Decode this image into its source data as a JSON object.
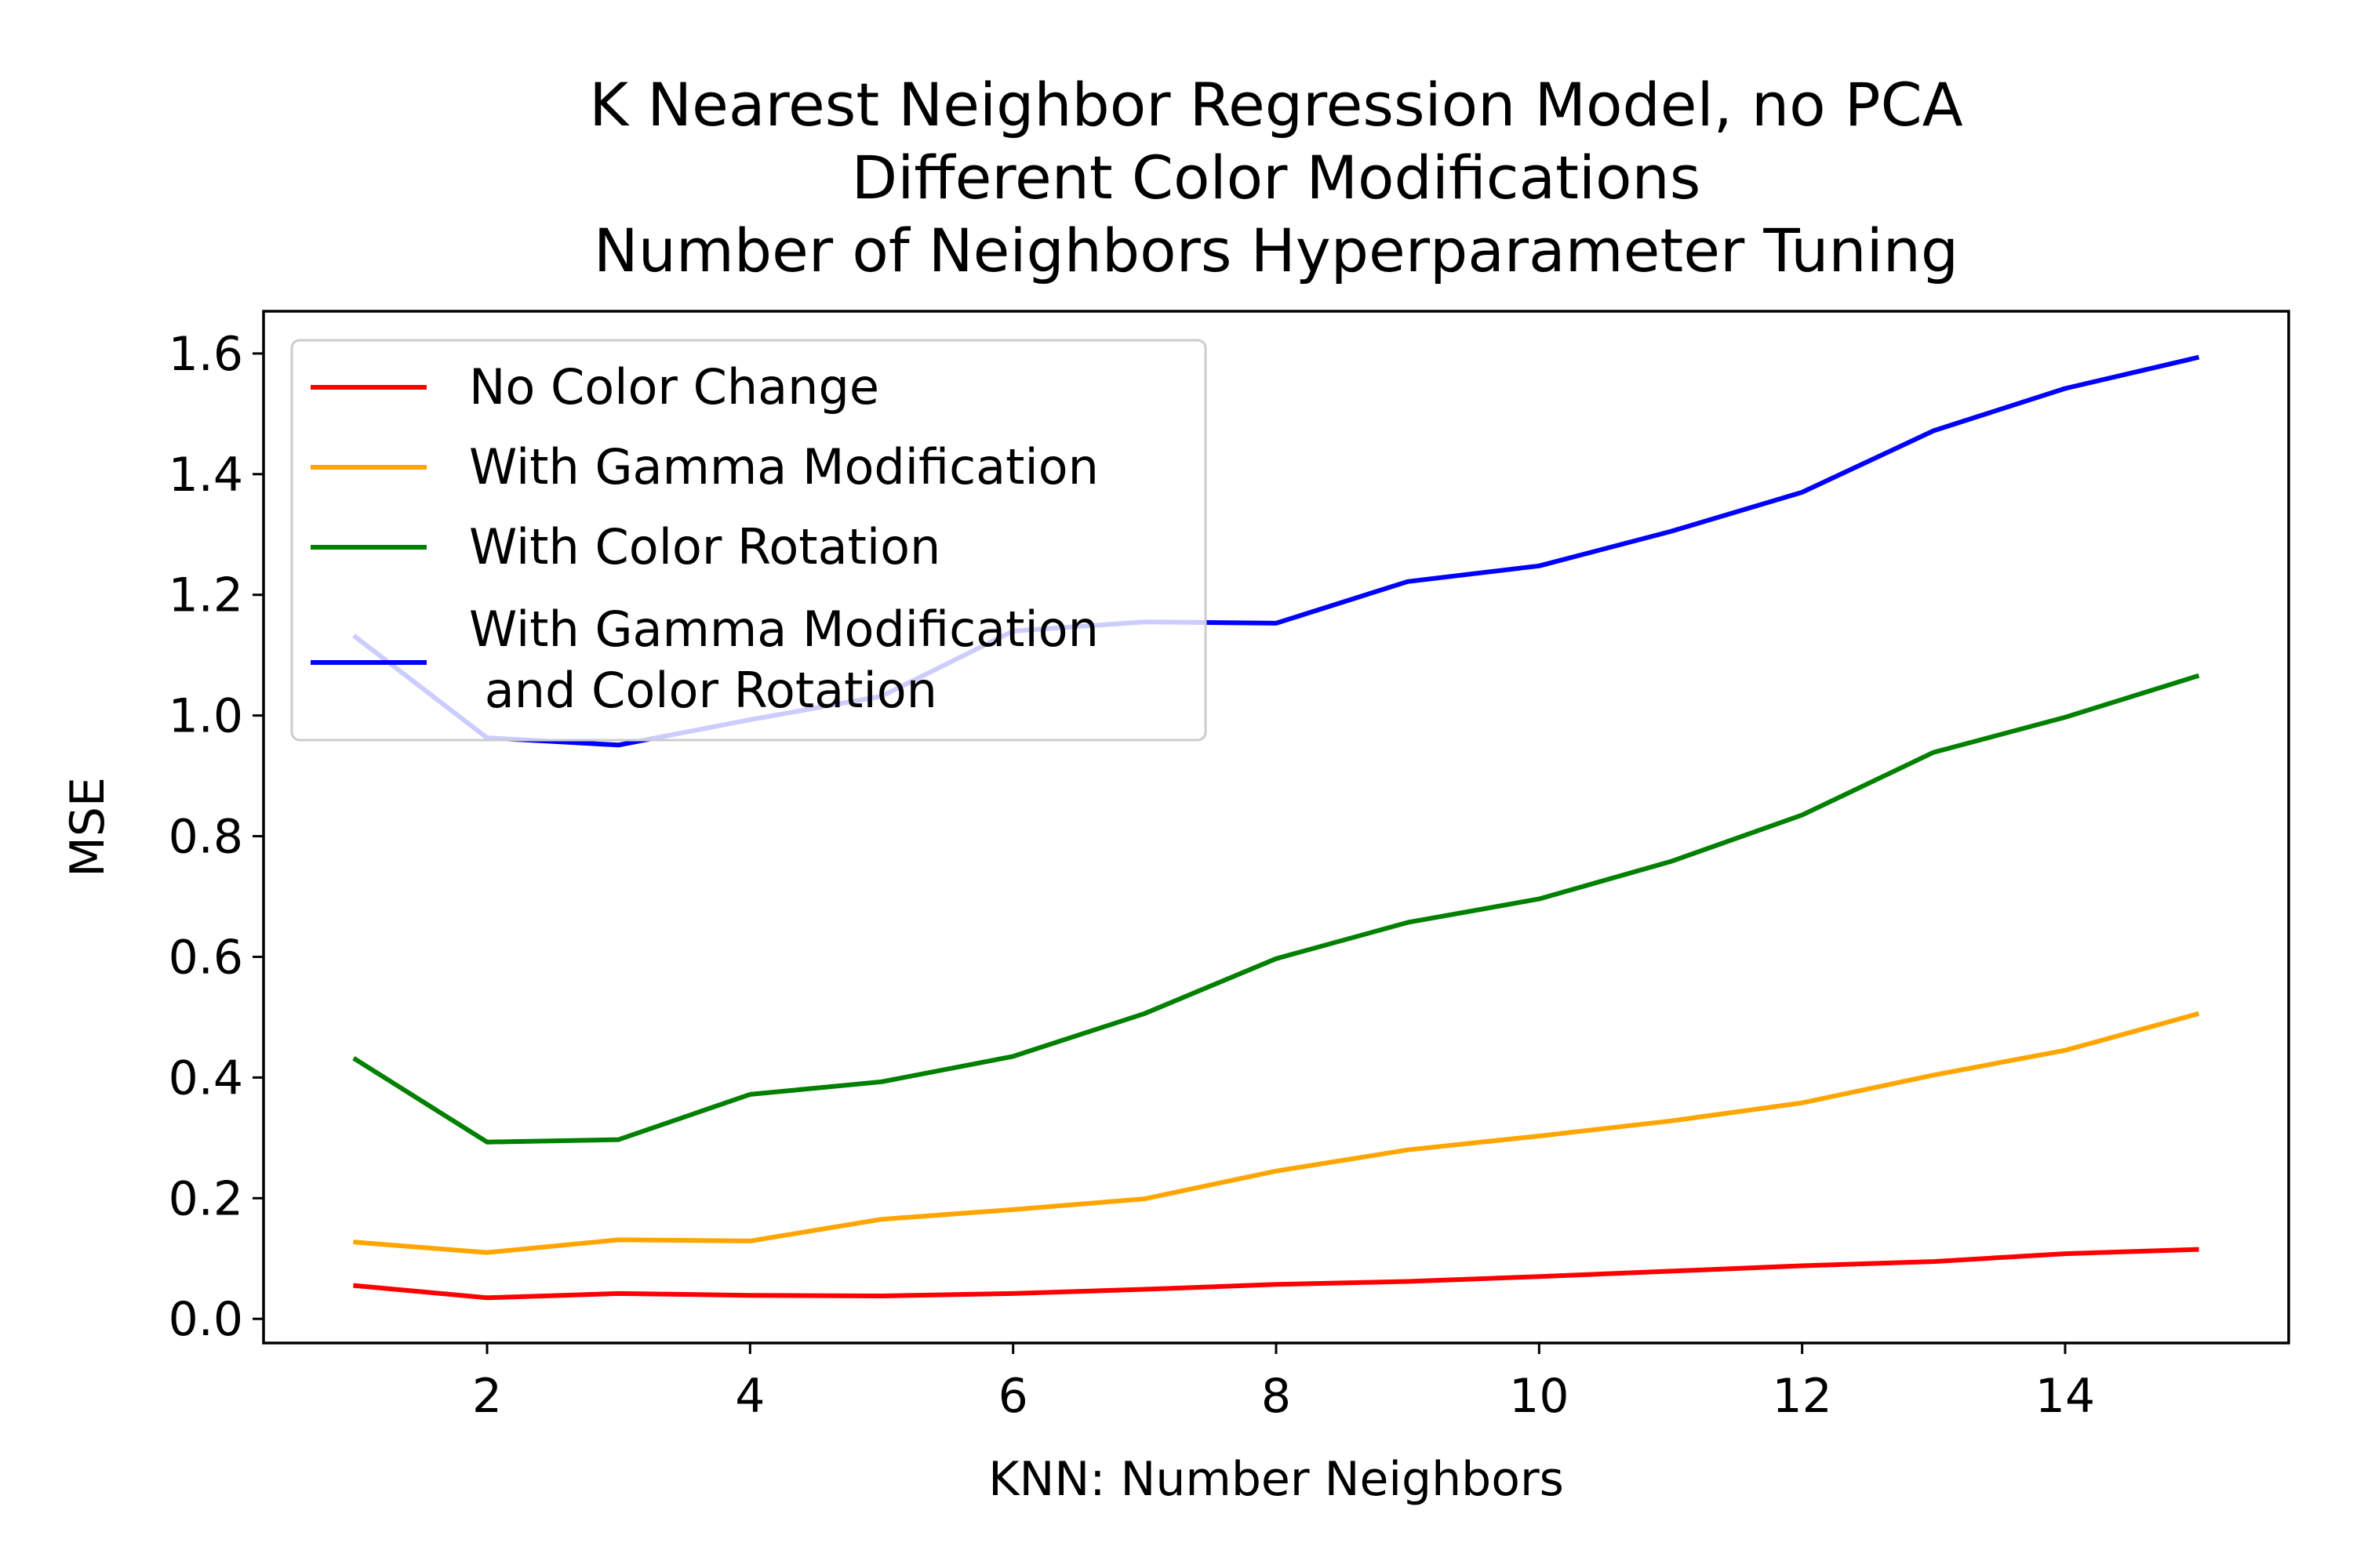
{
  "chart_data": {
    "type": "line",
    "title_lines": [
      "K Nearest Neighbor Regression Model, no PCA",
      "Different Color Modifications",
      "Number of Neighbors Hyperparameter Tuning"
    ],
    "xlabel": "KNN: Number Neighbors",
    "ylabel": "MSE",
    "xlim": [
      0.3,
      15.7
    ],
    "ylim": [
      -0.04,
      1.67
    ],
    "xticks": [
      2,
      4,
      6,
      8,
      10,
      12,
      14
    ],
    "yticks": [
      0.0,
      0.2,
      0.4,
      0.6,
      0.8,
      1.0,
      1.2,
      1.4,
      1.6
    ],
    "x": [
      1,
      2,
      3,
      4,
      5,
      6,
      7,
      8,
      9,
      10,
      11,
      12,
      13,
      14,
      15
    ],
    "legend_position": "upper-left",
    "series": [
      {
        "name": "No Color Change",
        "color": "#ff0000",
        "values": [
          0.055,
          0.035,
          0.042,
          0.039,
          0.038,
          0.042,
          0.049,
          0.057,
          0.062,
          0.07,
          0.079,
          0.088,
          0.095,
          0.108,
          0.115
        ]
      },
      {
        "name": "With Gamma Modification",
        "color": "#ffa500",
        "values": [
          0.127,
          0.11,
          0.131,
          0.129,
          0.165,
          0.181,
          0.199,
          0.245,
          0.28,
          0.303,
          0.328,
          0.358,
          0.404,
          0.445,
          0.505
        ]
      },
      {
        "name": "With Color Rotation",
        "color": "#008000",
        "values": [
          0.43,
          0.293,
          0.297,
          0.372,
          0.393,
          0.435,
          0.506,
          0.597,
          0.657,
          0.696,
          0.758,
          0.835,
          0.939,
          0.997,
          1.065
        ]
      },
      {
        "name": "With Gamma Modification\n and Color Rotation",
        "name_lines": [
          "With Gamma Modification",
          " and Color Rotation"
        ],
        "color": "#0000ff",
        "values": [
          1.13,
          0.963,
          0.951,
          0.993,
          1.032,
          1.14,
          1.155,
          1.153,
          1.222,
          1.248,
          1.305,
          1.37,
          1.472,
          1.542,
          1.593
        ]
      }
    ]
  }
}
